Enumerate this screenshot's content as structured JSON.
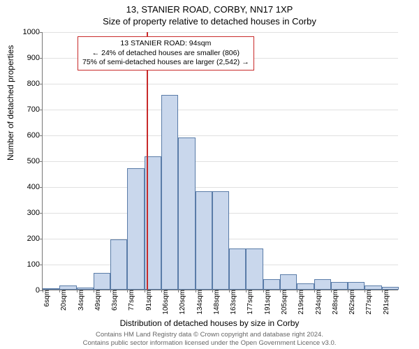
{
  "title_main": "13, STANIER ROAD, CORBY, NN17 1XP",
  "title_sub": "Size of property relative to detached houses in Corby",
  "y_axis": {
    "label": "Number of detached properties",
    "min": 0,
    "max": 1000,
    "tick_step": 100,
    "ticks": [
      0,
      100,
      200,
      300,
      400,
      500,
      600,
      700,
      800,
      900,
      1000
    ],
    "grid_color": "#e0e0e0",
    "axis_color": "#777777"
  },
  "x_axis": {
    "label": "Distribution of detached houses by size in Corby",
    "bin_start": 6,
    "bin_width": 14.3,
    "tick_labels": [
      "6sqm",
      "20sqm",
      "34sqm",
      "49sqm",
      "63sqm",
      "77sqm",
      "91sqm",
      "106sqm",
      "120sqm",
      "134sqm",
      "148sqm",
      "163sqm",
      "177sqm",
      "191sqm",
      "205sqm",
      "219sqm",
      "234sqm",
      "248sqm",
      "262sqm",
      "277sqm",
      "291sqm"
    ]
  },
  "histogram": {
    "type": "histogram",
    "bar_fill": "#c9d7ec",
    "bar_stroke": "#5a7ca8",
    "values": [
      2,
      15,
      8,
      65,
      195,
      470,
      515,
      755,
      590,
      380,
      380,
      160,
      160,
      40,
      60,
      25,
      40,
      30,
      30,
      15,
      10
    ]
  },
  "marker": {
    "value_sqm": 94,
    "line_color": "#c82a2a"
  },
  "annotation": {
    "line1": "13 STANIER ROAD: 94sqm",
    "line2": "← 24% of detached houses are smaller (806)",
    "line3": "75% of semi-detached houses are larger (2,542) →",
    "border_color": "#c82a2a",
    "background": "#ffffff",
    "fontsize": 10.5
  },
  "footer": {
    "line1": "Contains HM Land Registry data © Crown copyright and database right 2024.",
    "line2": "Contains public sector information licensed under the Open Government Licence v3.0.",
    "color": "#666666"
  },
  "background_color": "#ffffff"
}
